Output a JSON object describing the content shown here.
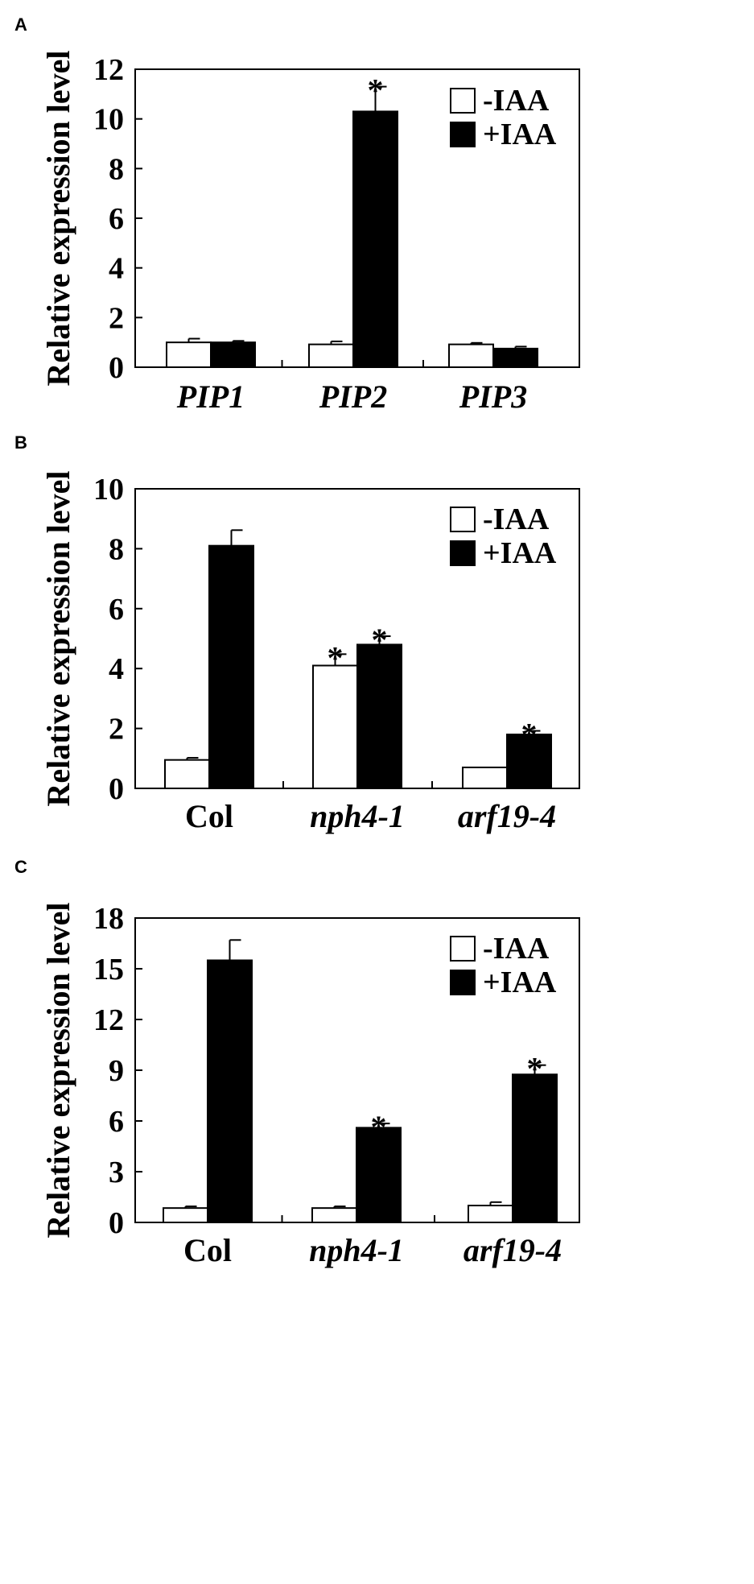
{
  "chart_data": [
    {
      "panel": "A",
      "type": "bar",
      "ylabel": "Relative expression level",
      "ylim": [
        0,
        12
      ],
      "yticks": [
        0,
        2,
        4,
        6,
        8,
        10,
        12
      ],
      "categories": [
        "PIP1",
        "PIP2",
        "PIP3"
      ],
      "categories_italic": true,
      "legend": {
        "position": "top-right"
      },
      "series": [
        {
          "name": "-IAA",
          "color": "#ffffff",
          "values": [
            1.0,
            0.92,
            0.92
          ],
          "errors": [
            0.15,
            0.12,
            0.06
          ],
          "significant": [
            false,
            false,
            false
          ]
        },
        {
          "name": "+IAA",
          "color": "#000000",
          "values": [
            1.0,
            10.3,
            0.75
          ],
          "errors": [
            0.06,
            1.0,
            0.08
          ],
          "significant": [
            false,
            true,
            false
          ]
        }
      ],
      "significance_marker": "*"
    },
    {
      "panel": "B",
      "type": "bar",
      "ylabel": "Relative expression level",
      "ylim": [
        0,
        10
      ],
      "yticks": [
        0,
        2,
        4,
        6,
        8,
        10
      ],
      "categories": [
        "Col",
        "nph4-1",
        "arf19-4"
      ],
      "categories_italic": [
        false,
        true,
        true
      ],
      "legend": {
        "position": "top-right"
      },
      "series": [
        {
          "name": "-IAA",
          "color": "#ffffff",
          "values": [
            0.95,
            4.1,
            0.7
          ],
          "errors": [
            0.07,
            0.38,
            0.0
          ],
          "significant": [
            false,
            true,
            false
          ]
        },
        {
          "name": "+IAA",
          "color": "#000000",
          "values": [
            8.1,
            4.8,
            1.8
          ],
          "errors": [
            0.52,
            0.28,
            0.12
          ],
          "significant": [
            false,
            true,
            true
          ]
        }
      ],
      "significance_marker": "*"
    },
    {
      "panel": "C",
      "type": "bar",
      "ylabel": "Relative expression level",
      "ylim": [
        0,
        18
      ],
      "yticks": [
        0,
        3,
        6,
        9,
        12,
        15,
        18
      ],
      "categories": [
        "Col",
        "nph4-1",
        "arf19-4"
      ],
      "categories_italic": [
        false,
        true,
        true
      ],
      "legend": {
        "position": "top-right"
      },
      "series": [
        {
          "name": "-IAA",
          "color": "#ffffff",
          "values": [
            0.85,
            0.85,
            1.0
          ],
          "errors": [
            0.1,
            0.1,
            0.2
          ],
          "significant": [
            false,
            false,
            false
          ]
        },
        {
          "name": "+IAA",
          "color": "#000000",
          "values": [
            15.5,
            5.6,
            8.75
          ],
          "errors": [
            1.2,
            0.25,
            0.55
          ],
          "significant": [
            false,
            true,
            true
          ]
        }
      ],
      "significance_marker": "*"
    }
  ]
}
